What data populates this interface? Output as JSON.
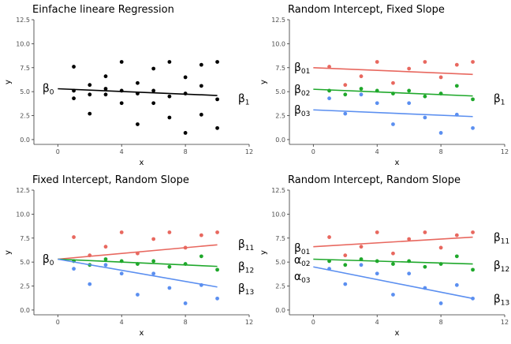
{
  "chart_data": [
    {
      "type": "scatter",
      "title": "Einfache lineare Regression",
      "xlabel": "x",
      "ylabel": "y",
      "xlim": [
        -1.5,
        12
      ],
      "ylim": [
        -0.5,
        12.5
      ],
      "xticks": [
        "0",
        "4",
        "8",
        "12"
      ],
      "yticks": [
        "0.0",
        "2.5",
        "5.0",
        "7.5",
        "10.0",
        "12.5"
      ],
      "grid": false,
      "points": [
        {
          "x": 1,
          "y": 7.6,
          "series": "all"
        },
        {
          "x": 1,
          "y": 5.1,
          "series": "all"
        },
        {
          "x": 1,
          "y": 4.3,
          "series": "all"
        },
        {
          "x": 2,
          "y": 5.7,
          "series": "all"
        },
        {
          "x": 2,
          "y": 4.7,
          "series": "all"
        },
        {
          "x": 2,
          "y": 2.7,
          "series": "all"
        },
        {
          "x": 3,
          "y": 6.6,
          "series": "all"
        },
        {
          "x": 3,
          "y": 5.3,
          "series": "all"
        },
        {
          "x": 3,
          "y": 4.7,
          "series": "all"
        },
        {
          "x": 4,
          "y": 8.1,
          "series": "all"
        },
        {
          "x": 4,
          "y": 5.1,
          "series": "all"
        },
        {
          "x": 4,
          "y": 3.8,
          "series": "all"
        },
        {
          "x": 5,
          "y": 5.9,
          "series": "all"
        },
        {
          "x": 5,
          "y": 4.8,
          "series": "all"
        },
        {
          "x": 5,
          "y": 1.6,
          "series": "all"
        },
        {
          "x": 6,
          "y": 7.4,
          "series": "all"
        },
        {
          "x": 6,
          "y": 5.1,
          "series": "all"
        },
        {
          "x": 6,
          "y": 3.8,
          "series": "all"
        },
        {
          "x": 7,
          "y": 8.1,
          "series": "all"
        },
        {
          "x": 7,
          "y": 4.5,
          "series": "all"
        },
        {
          "x": 7,
          "y": 2.3,
          "series": "all"
        },
        {
          "x": 8,
          "y": 6.5,
          "series": "all"
        },
        {
          "x": 8,
          "y": 4.8,
          "series": "all"
        },
        {
          "x": 8,
          "y": 0.7,
          "series": "all"
        },
        {
          "x": 9,
          "y": 7.8,
          "series": "all"
        },
        {
          "x": 9,
          "y": 5.6,
          "series": "all"
        },
        {
          "x": 9,
          "y": 2.6,
          "series": "all"
        },
        {
          "x": 10,
          "y": 8.1,
          "series": "all"
        },
        {
          "x": 10,
          "y": 4.2,
          "series": "all"
        },
        {
          "x": 10,
          "y": 1.2,
          "series": "all"
        }
      ],
      "lines": [
        {
          "series": "all",
          "x": [
            0,
            10
          ],
          "y": [
            5.3,
            4.6
          ]
        }
      ],
      "annotations": [
        {
          "base": "β",
          "sub": "0",
          "x": -0.6,
          "y": 5.4
        },
        {
          "base": "β",
          "sub": "1",
          "x": 11.3,
          "y": 4.3
        }
      ],
      "colors": {
        "all": "#000000"
      }
    },
    {
      "type": "scatter",
      "title": "Random Intercept, Fixed Slope",
      "xlabel": "x",
      "ylabel": "y",
      "xlim": [
        -1.5,
        12
      ],
      "ylim": [
        -0.5,
        12.5
      ],
      "xticks": [
        "0",
        "4",
        "8",
        "12"
      ],
      "yticks": [
        "0.0",
        "2.5",
        "5.0",
        "7.5",
        "10.0",
        "12.5"
      ],
      "grid": false,
      "points": [
        {
          "x": 1,
          "y": 7.6,
          "series": "red"
        },
        {
          "x": 1,
          "y": 5.1,
          "series": "green"
        },
        {
          "x": 1,
          "y": 4.3,
          "series": "blue"
        },
        {
          "x": 2,
          "y": 5.7,
          "series": "red"
        },
        {
          "x": 2,
          "y": 4.7,
          "series": "green"
        },
        {
          "x": 2,
          "y": 2.7,
          "series": "blue"
        },
        {
          "x": 3,
          "y": 6.6,
          "series": "red"
        },
        {
          "x": 3,
          "y": 5.3,
          "series": "green"
        },
        {
          "x": 3,
          "y": 4.7,
          "series": "blue"
        },
        {
          "x": 4,
          "y": 8.1,
          "series": "red"
        },
        {
          "x": 4,
          "y": 5.1,
          "series": "green"
        },
        {
          "x": 4,
          "y": 3.8,
          "series": "blue"
        },
        {
          "x": 5,
          "y": 5.9,
          "series": "red"
        },
        {
          "x": 5,
          "y": 4.8,
          "series": "green"
        },
        {
          "x": 5,
          "y": 1.6,
          "series": "blue"
        },
        {
          "x": 6,
          "y": 7.4,
          "series": "red"
        },
        {
          "x": 6,
          "y": 5.1,
          "series": "green"
        },
        {
          "x": 6,
          "y": 3.8,
          "series": "blue"
        },
        {
          "x": 7,
          "y": 8.1,
          "series": "red"
        },
        {
          "x": 7,
          "y": 4.5,
          "series": "green"
        },
        {
          "x": 7,
          "y": 2.3,
          "series": "blue"
        },
        {
          "x": 8,
          "y": 6.5,
          "series": "red"
        },
        {
          "x": 8,
          "y": 4.8,
          "series": "green"
        },
        {
          "x": 8,
          "y": 0.7,
          "series": "blue"
        },
        {
          "x": 9,
          "y": 7.8,
          "series": "red"
        },
        {
          "x": 9,
          "y": 5.6,
          "series": "green"
        },
        {
          "x": 9,
          "y": 2.6,
          "series": "blue"
        },
        {
          "x": 10,
          "y": 8.1,
          "series": "red"
        },
        {
          "x": 10,
          "y": 4.2,
          "series": "green"
        },
        {
          "x": 10,
          "y": 1.2,
          "series": "blue"
        }
      ],
      "lines": [
        {
          "series": "red",
          "x": [
            0,
            10
          ],
          "y": [
            7.5,
            6.8
          ]
        },
        {
          "series": "green",
          "x": [
            0,
            10
          ],
          "y": [
            5.25,
            4.55
          ]
        },
        {
          "series": "blue",
          "x": [
            0,
            10
          ],
          "y": [
            3.1,
            2.4
          ]
        }
      ],
      "annotations": [
        {
          "base": "β",
          "sub": "01",
          "x": -0.7,
          "y": 7.55
        },
        {
          "base": "β",
          "sub": "02",
          "x": -0.7,
          "y": 5.25
        },
        {
          "base": "β",
          "sub": "03",
          "x": -0.7,
          "y": 3.1
        },
        {
          "base": "β",
          "sub": "1",
          "x": 11.3,
          "y": 4.3
        }
      ],
      "colors": {
        "red": "#e8685f",
        "green": "#1fa82b",
        "blue": "#5b8ff0"
      }
    },
    {
      "type": "scatter",
      "title": "Fixed Intercept, Random Slope",
      "xlabel": "x",
      "ylabel": "y",
      "xlim": [
        -1.5,
        12
      ],
      "ylim": [
        -0.5,
        12.5
      ],
      "xticks": [
        "0",
        "4",
        "8",
        "12"
      ],
      "yticks": [
        "0.0",
        "2.5",
        "5.0",
        "7.5",
        "10.0",
        "12.5"
      ],
      "grid": false,
      "points": [
        {
          "x": 1,
          "y": 7.6,
          "series": "red"
        },
        {
          "x": 1,
          "y": 5.1,
          "series": "green"
        },
        {
          "x": 1,
          "y": 4.3,
          "series": "blue"
        },
        {
          "x": 2,
          "y": 5.7,
          "series": "red"
        },
        {
          "x": 2,
          "y": 4.7,
          "series": "green"
        },
        {
          "x": 2,
          "y": 2.7,
          "series": "blue"
        },
        {
          "x": 3,
          "y": 6.6,
          "series": "red"
        },
        {
          "x": 3,
          "y": 5.3,
          "series": "green"
        },
        {
          "x": 3,
          "y": 4.7,
          "series": "blue"
        },
        {
          "x": 4,
          "y": 8.1,
          "series": "red"
        },
        {
          "x": 4,
          "y": 5.1,
          "series": "green"
        },
        {
          "x": 4,
          "y": 3.8,
          "series": "blue"
        },
        {
          "x": 5,
          "y": 5.9,
          "series": "red"
        },
        {
          "x": 5,
          "y": 4.8,
          "series": "green"
        },
        {
          "x": 5,
          "y": 1.6,
          "series": "blue"
        },
        {
          "x": 6,
          "y": 7.4,
          "series": "red"
        },
        {
          "x": 6,
          "y": 5.1,
          "series": "green"
        },
        {
          "x": 6,
          "y": 3.8,
          "series": "blue"
        },
        {
          "x": 7,
          "y": 8.1,
          "series": "red"
        },
        {
          "x": 7,
          "y": 4.5,
          "series": "green"
        },
        {
          "x": 7,
          "y": 2.3,
          "series": "blue"
        },
        {
          "x": 8,
          "y": 6.5,
          "series": "red"
        },
        {
          "x": 8,
          "y": 4.8,
          "series": "green"
        },
        {
          "x": 8,
          "y": 0.7,
          "series": "blue"
        },
        {
          "x": 9,
          "y": 7.8,
          "series": "red"
        },
        {
          "x": 9,
          "y": 5.6,
          "series": "green"
        },
        {
          "x": 9,
          "y": 2.6,
          "series": "blue"
        },
        {
          "x": 10,
          "y": 8.1,
          "series": "red"
        },
        {
          "x": 10,
          "y": 4.2,
          "series": "green"
        },
        {
          "x": 10,
          "y": 1.2,
          "series": "blue"
        }
      ],
      "lines": [
        {
          "series": "red",
          "x": [
            0,
            10
          ],
          "y": [
            5.3,
            6.8
          ]
        },
        {
          "series": "green",
          "x": [
            0,
            10
          ],
          "y": [
            5.3,
            4.55
          ]
        },
        {
          "series": "blue",
          "x": [
            0,
            10
          ],
          "y": [
            5.3,
            2.4
          ]
        }
      ],
      "annotations": [
        {
          "base": "β",
          "sub": "0",
          "x": -0.6,
          "y": 5.35
        },
        {
          "base": "β",
          "sub": "11",
          "x": 11.3,
          "y": 6.9
        },
        {
          "base": "β",
          "sub": "12",
          "x": 11.3,
          "y": 4.55
        },
        {
          "base": "β",
          "sub": "13",
          "x": 11.3,
          "y": 2.3
        }
      ],
      "colors": {
        "red": "#e8685f",
        "green": "#1fa82b",
        "blue": "#5b8ff0"
      }
    },
    {
      "type": "scatter",
      "title": "Random Intercept, Random Slope",
      "xlabel": "x",
      "ylabel": "y",
      "xlim": [
        -1.5,
        12
      ],
      "ylim": [
        -0.5,
        12.5
      ],
      "xticks": [
        "0",
        "4",
        "8",
        "12"
      ],
      "yticks": [
        "0.0",
        "2.5",
        "5.0",
        "7.5",
        "10.0",
        "12.5"
      ],
      "grid": false,
      "points": [
        {
          "x": 1,
          "y": 7.6,
          "series": "red"
        },
        {
          "x": 1,
          "y": 5.1,
          "series": "green"
        },
        {
          "x": 1,
          "y": 4.3,
          "series": "blue"
        },
        {
          "x": 2,
          "y": 5.7,
          "series": "red"
        },
        {
          "x": 2,
          "y": 4.7,
          "series": "green"
        },
        {
          "x": 2,
          "y": 2.7,
          "series": "blue"
        },
        {
          "x": 3,
          "y": 6.6,
          "series": "red"
        },
        {
          "x": 3,
          "y": 5.3,
          "series": "green"
        },
        {
          "x": 3,
          "y": 4.7,
          "series": "blue"
        },
        {
          "x": 4,
          "y": 8.1,
          "series": "red"
        },
        {
          "x": 4,
          "y": 5.1,
          "series": "green"
        },
        {
          "x": 4,
          "y": 3.8,
          "series": "blue"
        },
        {
          "x": 5,
          "y": 5.9,
          "series": "red"
        },
        {
          "x": 5,
          "y": 4.8,
          "series": "green"
        },
        {
          "x": 5,
          "y": 1.6,
          "series": "blue"
        },
        {
          "x": 6,
          "y": 7.4,
          "series": "red"
        },
        {
          "x": 6,
          "y": 5.1,
          "series": "green"
        },
        {
          "x": 6,
          "y": 3.8,
          "series": "blue"
        },
        {
          "x": 7,
          "y": 8.1,
          "series": "red"
        },
        {
          "x": 7,
          "y": 4.5,
          "series": "green"
        },
        {
          "x": 7,
          "y": 2.3,
          "series": "blue"
        },
        {
          "x": 8,
          "y": 6.5,
          "series": "red"
        },
        {
          "x": 8,
          "y": 4.8,
          "series": "green"
        },
        {
          "x": 8,
          "y": 0.7,
          "series": "blue"
        },
        {
          "x": 9,
          "y": 7.8,
          "series": "red"
        },
        {
          "x": 9,
          "y": 5.6,
          "series": "green"
        },
        {
          "x": 9,
          "y": 2.6,
          "series": "blue"
        },
        {
          "x": 10,
          "y": 8.1,
          "series": "red"
        },
        {
          "x": 10,
          "y": 4.2,
          "series": "green"
        },
        {
          "x": 10,
          "y": 1.2,
          "series": "blue"
        }
      ],
      "lines": [
        {
          "series": "red",
          "x": [
            0,
            10
          ],
          "y": [
            6.6,
            7.6
          ]
        },
        {
          "series": "green",
          "x": [
            0,
            10
          ],
          "y": [
            5.3,
            4.8
          ]
        },
        {
          "series": "blue",
          "x": [
            0,
            10
          ],
          "y": [
            4.5,
            1.2
          ]
        }
      ],
      "annotations": [
        {
          "base": "β",
          "sub": "01",
          "x": -0.7,
          "y": 6.5
        },
        {
          "base": "α",
          "sub": "02",
          "x": -0.7,
          "y": 5.25
        },
        {
          "base": "α",
          "sub": "03",
          "x": -0.7,
          "y": 3.55
        },
        {
          "base": "β",
          "sub": "11",
          "x": 11.3,
          "y": 7.6
        },
        {
          "base": "β",
          "sub": "12",
          "x": 11.3,
          "y": 4.7
        },
        {
          "base": "β",
          "sub": "13",
          "x": 11.3,
          "y": 1.2
        }
      ],
      "colors": {
        "red": "#e8685f",
        "green": "#1fa82b",
        "blue": "#5b8ff0"
      }
    }
  ]
}
